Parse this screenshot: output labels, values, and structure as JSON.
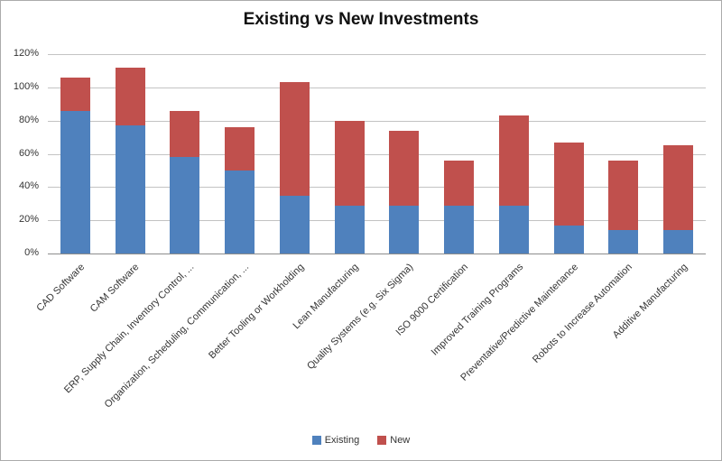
{
  "chart_data": {
    "type": "bar",
    "stacked": true,
    "title": "Existing vs New Investments",
    "categories": [
      "CAD Software",
      "CAM Software",
      "ERP, Supply Chain, Inventory Control, ...",
      "Organization, Scheduling, Communication, ...",
      "Better Tooling or Workholding",
      "Lean Manufacturing",
      "Quality Systems (e.g. Six Sigma)",
      "ISO 9000 Certification",
      "Improved Training Programs",
      "Preventative/Predictive Maintenance",
      "Robots to Increase Automation",
      "Additive Manufacturing"
    ],
    "series": [
      {
        "name": "Existing",
        "color": "#4F81BD",
        "values": [
          86,
          77,
          58,
          50,
          35,
          29,
          29,
          29,
          29,
          17,
          14,
          14
        ]
      },
      {
        "name": "New",
        "color": "#C0504D",
        "values": [
          20,
          35,
          28,
          26,
          68,
          51,
          45,
          27,
          54,
          50,
          42,
          51
        ]
      }
    ],
    "y_axis": {
      "min": 0,
      "max": 120,
      "step": 20,
      "tick_labels": [
        "0%",
        "20%",
        "40%",
        "60%",
        "80%",
        "100%",
        "120%"
      ]
    },
    "x_tick_rotation_deg": 45,
    "grid": true,
    "legend_position": "bottom",
    "colors": {
      "gridline": "#C3C3C3",
      "axis_line": "#8C8C8C",
      "text": "#333333",
      "title_text": "#111111",
      "frame_border": "#ABABAB",
      "background": "#FFFFFF"
    }
  }
}
